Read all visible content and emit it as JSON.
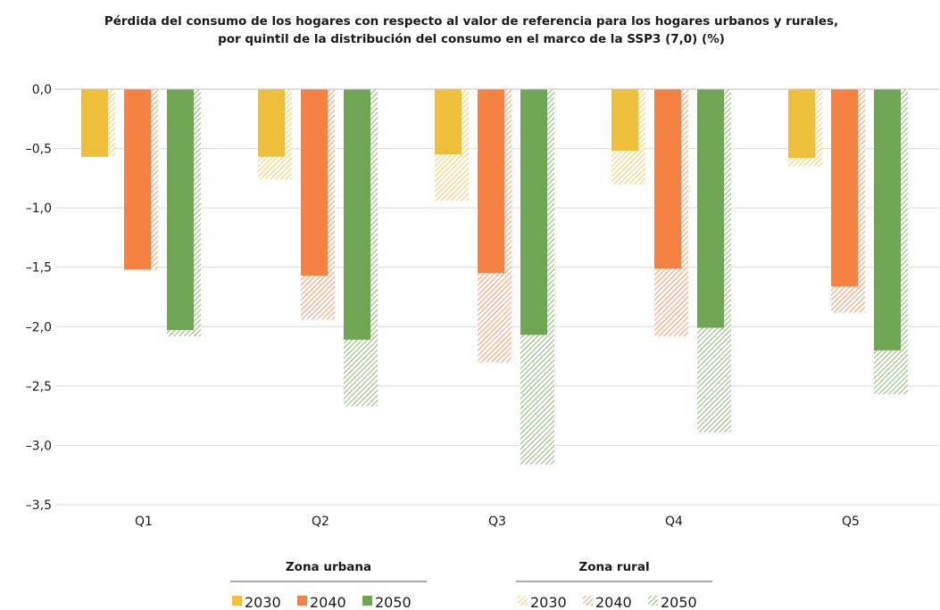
{
  "chart_data": {
    "type": "bar",
    "title_lines": [
      "Pérdida del consumo de los hogares con respecto al valor de referencia para los hogares urbanos y rurales,",
      "por quintil de la distribución del consumo en el marco de la SSP3 (7,0) (%)"
    ],
    "categories": [
      "Q1",
      "Q2",
      "Q3",
      "Q4",
      "Q5"
    ],
    "ylim": [
      -3.5,
      0
    ],
    "yticks": [
      "0,0",
      "–0,5",
      "–1,0",
      "–1,5",
      "–2,0",
      "–2,5",
      "–3,0",
      "–3,5"
    ],
    "ytick_values": [
      0,
      -0.5,
      -1.0,
      -1.5,
      -2.0,
      -2.5,
      -3.0,
      -3.5
    ],
    "grid": true,
    "legend_position": "bottom",
    "groups": [
      {
        "name": "Zona urbana",
        "pattern": "solid"
      },
      {
        "name": "Zona rural",
        "pattern": "hatched"
      }
    ],
    "series": [
      {
        "name": "2030",
        "color": "#EFBF3B",
        "urbana": [
          -0.57,
          -0.57,
          -0.55,
          -0.52,
          -0.58
        ],
        "rural": [
          -0.56,
          -0.76,
          -0.94,
          -0.8,
          -0.65
        ]
      },
      {
        "name": "2040",
        "color": "#F58142",
        "urbana": [
          -1.52,
          -1.57,
          -1.55,
          -1.51,
          -1.66
        ],
        "rural": [
          -1.52,
          -1.94,
          -2.3,
          -2.08,
          -1.88
        ]
      },
      {
        "name": "2050",
        "color": "#6FA553",
        "urbana": [
          -2.03,
          -2.11,
          -2.07,
          -2.01,
          -2.2
        ],
        "rural": [
          -2.08,
          -2.67,
          -3.16,
          -2.89,
          -2.57
        ]
      }
    ]
  }
}
